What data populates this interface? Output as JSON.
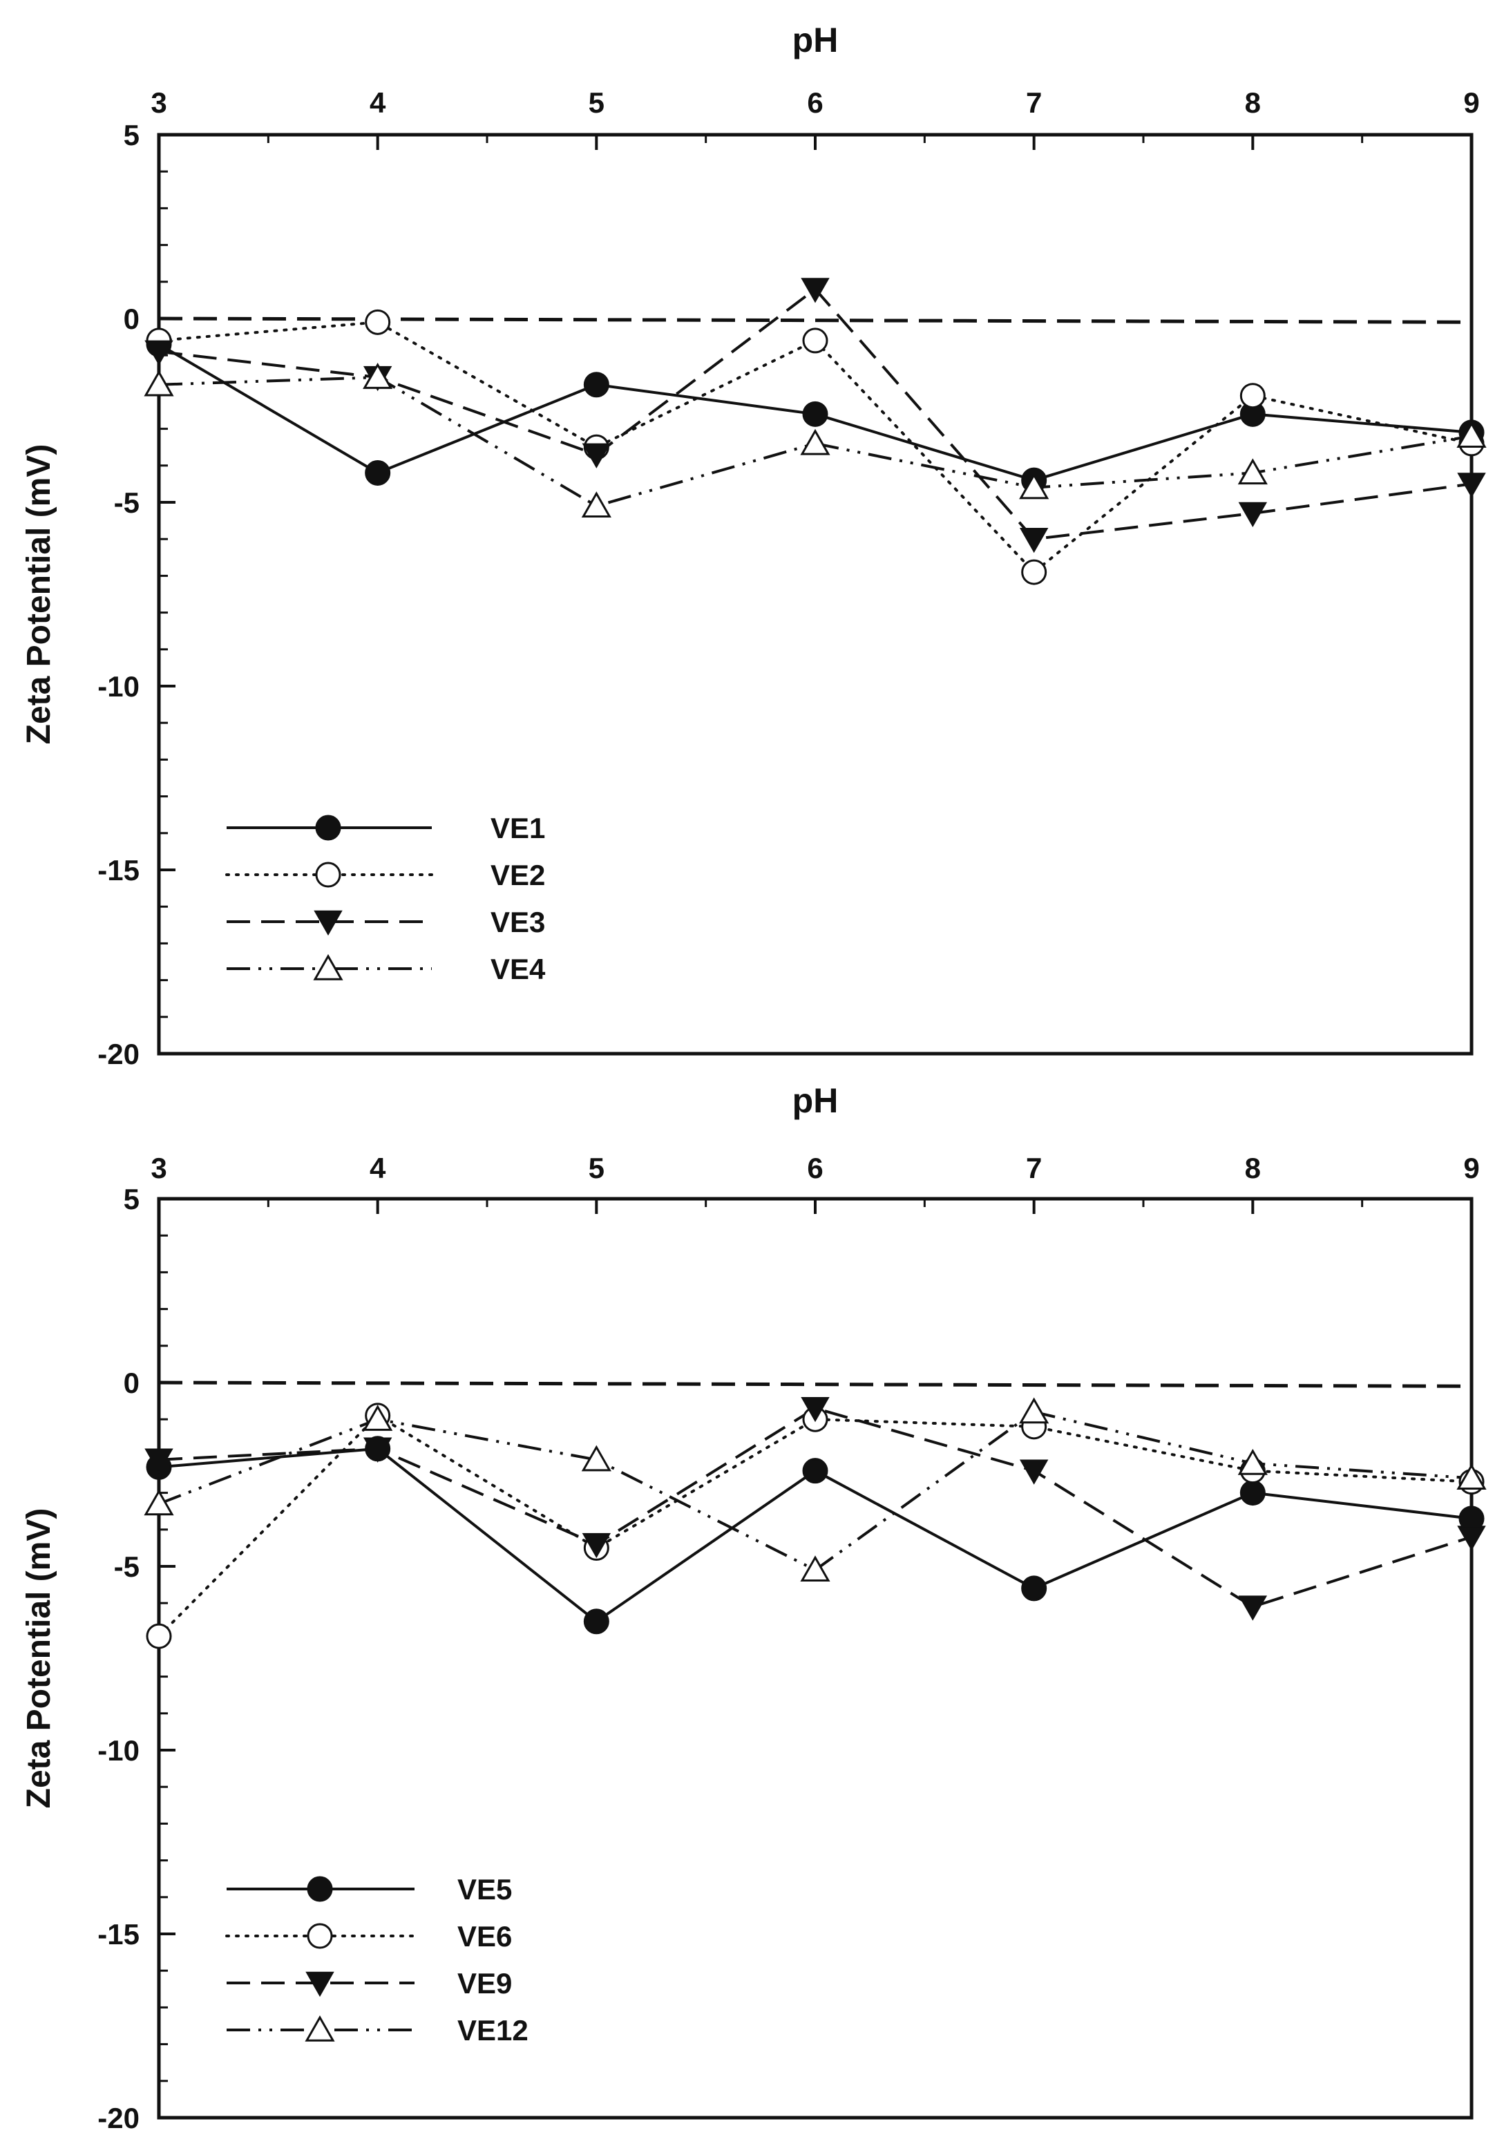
{
  "colors": {
    "line": "#111111",
    "background": "#ffffff"
  },
  "chart_data": [
    {
      "type": "line",
      "xlabel": "pH",
      "ylabel": "Zeta Potential (mV)",
      "xlim": [
        3,
        9
      ],
      "ylim": [
        -20,
        5
      ],
      "x_ticks": [
        "3",
        "4",
        "5",
        "6",
        "7",
        "8",
        "9"
      ],
      "y_ticks": [
        "5",
        "0",
        "-5",
        "-10",
        "-15",
        "-20"
      ],
      "legend_position": "bottom-left",
      "reference_line": {
        "y": [
          0,
          -0.1
        ],
        "style": "dashed"
      },
      "x": [
        3,
        4,
        5,
        6,
        7,
        8,
        9
      ],
      "series": [
        {
          "name": "VE1",
          "marker": "filled-circle",
          "line_style": "solid",
          "values": [
            -0.7,
            -4.2,
            -1.8,
            -2.6,
            -4.4,
            -2.6,
            -3.1
          ]
        },
        {
          "name": "VE2",
          "marker": "open-circle",
          "line_style": "dotted",
          "values": [
            -0.6,
            -0.1,
            -3.5,
            -0.6,
            -6.9,
            -2.1,
            -3.4
          ]
        },
        {
          "name": "VE3",
          "marker": "filled-triangle-down",
          "line_style": "dashed",
          "values": [
            -0.9,
            -1.6,
            -3.7,
            0.8,
            -6.0,
            -5.3,
            -4.5
          ]
        },
        {
          "name": "VE4",
          "marker": "open-triangle-up",
          "line_style": "dash-dot-dot",
          "values": [
            -1.8,
            -1.6,
            -5.1,
            -3.4,
            -4.6,
            -4.2,
            -3.2
          ]
        }
      ]
    },
    {
      "type": "line",
      "xlabel": "pH",
      "ylabel": "Zeta Potential (mV)",
      "xlim": [
        3,
        9
      ],
      "ylim": [
        -20,
        5
      ],
      "x_ticks": [
        "3",
        "4",
        "5",
        "6",
        "7",
        "8",
        "9"
      ],
      "y_ticks": [
        "5",
        "0",
        "-5",
        "-10",
        "-15",
        "-20"
      ],
      "legend_position": "bottom-left",
      "reference_line": {
        "y": [
          0,
          -0.1
        ],
        "style": "dashed"
      },
      "x": [
        3,
        4,
        5,
        6,
        7,
        8,
        9
      ],
      "series": [
        {
          "name": "VE5",
          "marker": "filled-circle",
          "line_style": "solid",
          "values": [
            -2.3,
            -1.8,
            -6.5,
            -2.4,
            -5.6,
            -3.0,
            -3.7
          ]
        },
        {
          "name": "VE6",
          "marker": "open-circle",
          "line_style": "dotted",
          "values": [
            -6.9,
            -0.9,
            -4.5,
            -1.0,
            -1.2,
            -2.4,
            -2.7
          ]
        },
        {
          "name": "VE9",
          "marker": "filled-triangle-down",
          "line_style": "dashed",
          "values": [
            -2.1,
            -1.8,
            -4.4,
            -0.7,
            -2.4,
            -6.1,
            -4.2
          ]
        },
        {
          "name": "VE12",
          "marker": "open-triangle-up",
          "line_style": "dash-dot-dot",
          "values": [
            -3.3,
            -1.0,
            -2.1,
            -5.1,
            -0.8,
            -2.2,
            -2.6
          ]
        }
      ]
    }
  ]
}
